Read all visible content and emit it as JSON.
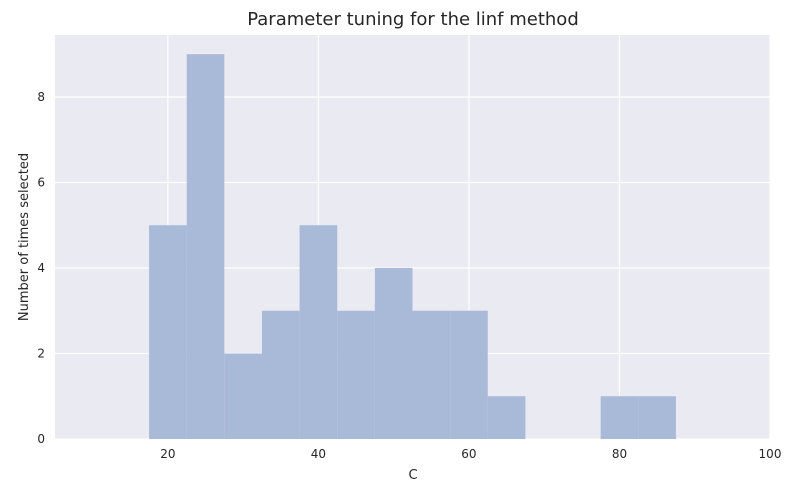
{
  "chart_data": {
    "type": "bar",
    "title": "Parameter tuning for the linf method",
    "xlabel": "C",
    "ylabel": "Number of times selected",
    "xlim": [
      5,
      100
    ],
    "ylim": [
      0,
      9.45
    ],
    "xticks": [
      20,
      40,
      60,
      80,
      100
    ],
    "yticks": [
      0,
      2,
      4,
      6,
      8
    ],
    "grid": true,
    "bar_color": "#a9b9d8",
    "background_color": "#eaeaf2",
    "bin_edges": [
      17.5,
      22.5,
      27.5,
      32.5,
      37.5,
      42.5,
      47.5,
      52.5,
      57.5,
      62.5,
      67.5,
      72.5,
      77.5,
      82.5,
      87.5
    ],
    "values": [
      5,
      9,
      2,
      3,
      5,
      3,
      4,
      3,
      3,
      1,
      0,
      0,
      1,
      1
    ]
  }
}
